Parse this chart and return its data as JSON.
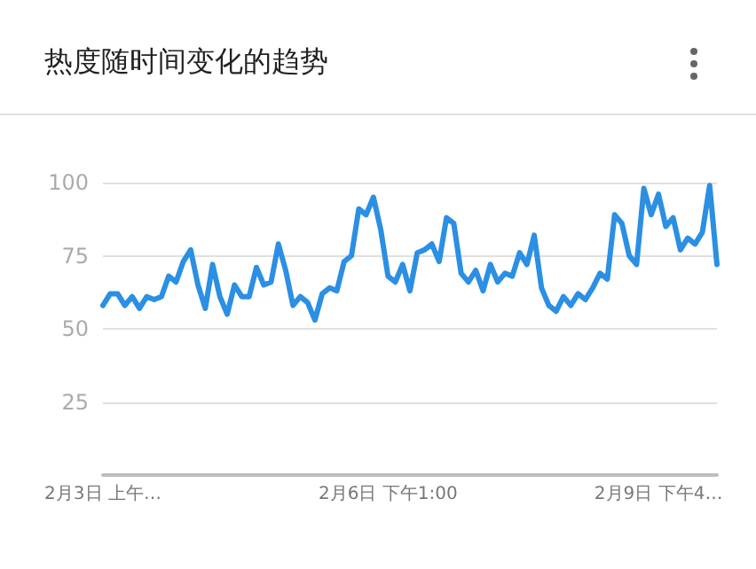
{
  "chart_data": {
    "type": "line",
    "title": "热度随时间变化的趋势",
    "categories": [
      "2月3日 上午…",
      null,
      null,
      null,
      null,
      null,
      null,
      null,
      null,
      null,
      null,
      null,
      null,
      null,
      null,
      null,
      null,
      null,
      null,
      null,
      null,
      null,
      null,
      null,
      null,
      null,
      null,
      null,
      null,
      null,
      null,
      null,
      null,
      null,
      null,
      null,
      null,
      null,
      null,
      "2月6日 下午1:00",
      null,
      null,
      null,
      null,
      null,
      null,
      null,
      null,
      null,
      null,
      null,
      null,
      null,
      null,
      null,
      null,
      null,
      null,
      null,
      null,
      null,
      null,
      null,
      null,
      null,
      null,
      null,
      null,
      null,
      null,
      null,
      null,
      null,
      null,
      null,
      null,
      "2月9日 下午4…",
      null,
      null,
      null,
      null,
      null,
      null,
      null,
      null
    ],
    "series": [
      {
        "color": "#2b8fe3",
        "values": [
          58,
          62,
          62,
          58,
          61,
          57,
          61,
          60,
          61,
          68,
          66,
          73,
          77,
          65,
          57,
          72,
          61,
          55,
          65,
          61,
          61,
          71,
          65,
          66,
          79,
          70,
          58,
          61,
          59,
          53,
          62,
          64,
          63,
          73,
          75,
          91,
          89,
          95,
          84,
          68,
          66,
          72,
          63,
          76,
          77,
          79,
          73,
          88,
          86,
          69,
          66,
          70,
          63,
          72,
          66,
          69,
          68,
          76,
          72,
          82,
          64,
          58,
          56,
          61,
          58,
          62,
          60,
          64,
          69,
          67,
          89,
          86,
          75,
          72,
          98,
          89,
          96,
          85,
          88,
          77,
          81,
          79,
          83,
          99,
          72
        ]
      }
    ],
    "ylim": [
      0,
      100
    ],
    "yticks": [
      25,
      50,
      75,
      100
    ],
    "grid": "y",
    "marker": "none",
    "line_style": "solid"
  }
}
